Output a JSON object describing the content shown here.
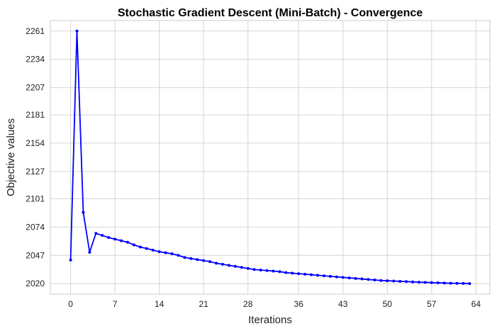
{
  "chart_data": {
    "type": "line",
    "title": "Stochastic Gradient Descent (Mini-Batch) - Convergence",
    "xlabel": "Iterations",
    "ylabel": "Objective values",
    "xlim": [
      -3.2,
      66.2
    ],
    "ylim": [
      2010,
      2271
    ],
    "x_ticks": [
      0,
      7,
      14,
      21,
      28,
      36,
      43,
      50,
      57,
      64
    ],
    "y_ticks": [
      2020,
      2047,
      2074,
      2101,
      2127,
      2154,
      2181,
      2207,
      2234,
      2261
    ],
    "grid": true,
    "series": [
      {
        "color": "#0000ff",
        "marker": "circle",
        "x": [
          0,
          1,
          2,
          3,
          4,
          5,
          6,
          7,
          8,
          9,
          10,
          11,
          12,
          13,
          14,
          15,
          16,
          17,
          18,
          19,
          20,
          21,
          22,
          23,
          24,
          25,
          26,
          27,
          28,
          29,
          30,
          31,
          32,
          33,
          34,
          35,
          36,
          37,
          38,
          39,
          40,
          41,
          42,
          43,
          44,
          45,
          46,
          47,
          48,
          49,
          50,
          51,
          52,
          53,
          54,
          55,
          56,
          57,
          58,
          59,
          60,
          61,
          62,
          63
        ],
        "values": [
          2042.5,
          2261,
          2088,
          2050,
          2068,
          2066,
          2064,
          2062.5,
          2061,
          2059.5,
          2057,
          2055,
          2053.5,
          2052,
          2050.5,
          2049.5,
          2048.5,
          2047,
          2045,
          2044,
          2043,
          2042,
          2041,
          2039.5,
          2038.5,
          2037.5,
          2036.5,
          2035.5,
          2034.5,
          2033.5,
          2033,
          2032.5,
          2032,
          2031.5,
          2030.5,
          2030,
          2029.5,
          2029,
          2028.5,
          2028,
          2027.5,
          2027,
          2026.5,
          2026,
          2025.5,
          2025,
          2024.5,
          2024,
          2023.5,
          2023,
          2022.8,
          2022.5,
          2022.2,
          2022,
          2021.7,
          2021.4,
          2021.2,
          2021,
          2020.8,
          2020.6,
          2020.4,
          2020.3,
          2020.2,
          2020.1
        ]
      }
    ]
  }
}
